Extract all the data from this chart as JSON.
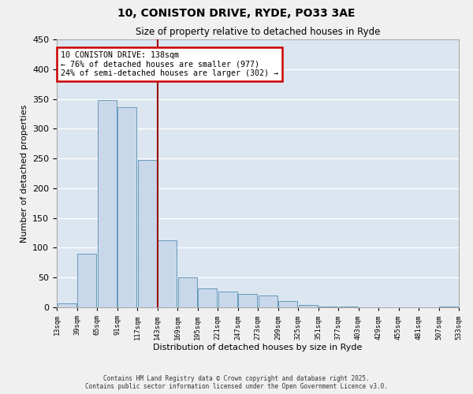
{
  "title": "10, CONISTON DRIVE, RYDE, PO33 3AE",
  "subtitle": "Size of property relative to detached houses in Ryde",
  "xlabel": "Distribution of detached houses by size in Ryde",
  "ylabel": "Number of detached properties",
  "bar_color": "#c8d8ea",
  "bar_edge_color": "#6699bb",
  "background_color": "#dce6f0",
  "grid_color": "#ffffff",
  "annotation_box_color": "#cc0000",
  "vline_color": "#990000",
  "vline_x": 5,
  "bin_edges": [
    0,
    1,
    2,
    3,
    4,
    5,
    6,
    7,
    8,
    9,
    10,
    11,
    12,
    13,
    14,
    15,
    16,
    17,
    18,
    19,
    20
  ],
  "bar_heights": [
    7,
    90,
    348,
    336,
    248,
    113,
    50,
    32,
    27,
    22,
    20,
    10,
    4,
    1,
    1,
    0,
    0,
    0,
    0,
    1
  ],
  "tick_labels": [
    "13sqm",
    "39sqm",
    "65sqm",
    "91sqm",
    "117sqm",
    "143sqm",
    "169sqm",
    "195sqm",
    "221sqm",
    "247sqm",
    "273sqm",
    "299sqm",
    "325sqm",
    "351sqm",
    "377sqm",
    "403sqm",
    "429sqm",
    "455sqm",
    "481sqm",
    "507sqm",
    "533sqm"
  ],
  "annotation_line1": "10 CONISTON DRIVE: 138sqm",
  "annotation_line2": "← 76% of detached houses are smaller (977)",
  "annotation_line3": "24% of semi-detached houses are larger (302) →",
  "ylim": [
    0,
    450
  ],
  "yticks": [
    0,
    50,
    100,
    150,
    200,
    250,
    300,
    350,
    400,
    450
  ],
  "footnote1": "Contains HM Land Registry data © Crown copyright and database right 2025.",
  "footnote2": "Contains public sector information licensed under the Open Government Licence v3.0."
}
